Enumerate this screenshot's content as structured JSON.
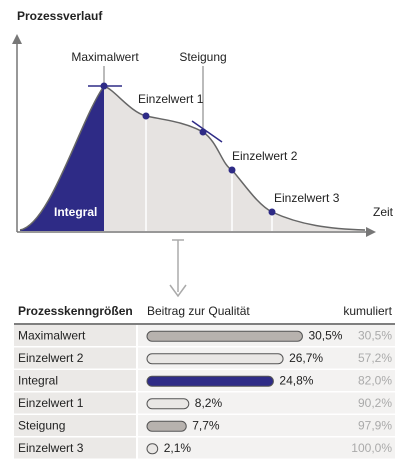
{
  "diagram": {
    "title": "Prozessverlauf",
    "peak": "Maximalwert",
    "slope": "Steigung",
    "point1": "Einzelwert 1",
    "point2": "Einzelwert 2",
    "point3": "Einzelwert 3",
    "area": "Integral",
    "x_axis": "Zeit"
  },
  "chart_data": {
    "type": "bar",
    "orientation": "horizontal",
    "columns": [
      "Prozesskenngrößen",
      "Beitrag zur Qualität",
      "kumuliert"
    ],
    "categories": [
      "Maximalwert",
      "Einzelwert 2",
      "Integral",
      "Einzelwert 1",
      "Steigung",
      "Einzelwert 3"
    ],
    "values": [
      30.5,
      26.7,
      24.8,
      8.2,
      7.7,
      2.1
    ],
    "value_labels": [
      "30,5%",
      "26,7%",
      "24,8%",
      "8,2%",
      "7,7%",
      "2,1%"
    ],
    "colors": [
      "#b7b2ae",
      "#e9e7e5",
      "#2e2b86",
      "#e9e7e5",
      "#b7b2ae",
      "#e9e7e5"
    ],
    "cumulative": [
      30.5,
      57.2,
      82.0,
      90.2,
      97.9,
      100.0
    ],
    "cumulative_labels": [
      "30,5%",
      "57,2%",
      "82,0%",
      "90,2%",
      "97,9%",
      "100,0%"
    ],
    "xlim": [
      0,
      31
    ]
  }
}
